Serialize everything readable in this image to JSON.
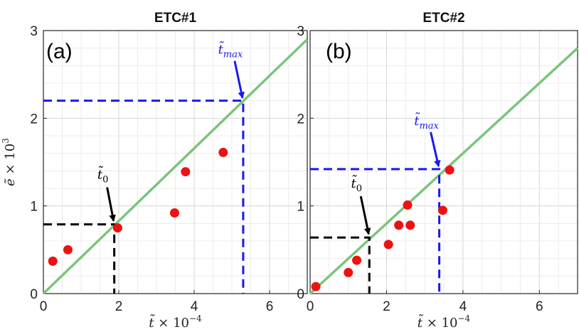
{
  "chart_data": [
    {
      "type": "scatter",
      "title": "ETC#1",
      "panel_label": "(a)",
      "xlabel": {
        "base": "t",
        "times": "×",
        "ten": "10",
        "exp": "−4"
      },
      "ylabel": {
        "base": "e",
        "times": "×",
        "ten": "10",
        "exp": "3"
      },
      "xlim": [
        0,
        7
      ],
      "ylim": [
        0,
        3
      ],
      "xticks": [
        0,
        2,
        4,
        6
      ],
      "xtick_labels": [
        "0",
        "2",
        "4",
        "6"
      ],
      "yticks": [
        0,
        1,
        2,
        3
      ],
      "ytick_labels": [
        "0",
        "1",
        "2",
        "3"
      ],
      "grid": true,
      "colors": {
        "points": "#ee1111",
        "line": "#7cc47c",
        "t0_guide": "#000000",
        "tmax_guide": "#1a1aee"
      },
      "line": {
        "x": [
          0,
          7
        ],
        "y": [
          0,
          2.9
        ]
      },
      "points": [
        {
          "x": 0.25,
          "y": 0.37
        },
        {
          "x": 0.65,
          "y": 0.5
        },
        {
          "x": 1.97,
          "y": 0.75
        },
        {
          "x": 3.48,
          "y": 0.92
        },
        {
          "x": 3.77,
          "y": 1.39
        },
        {
          "x": 4.77,
          "y": 1.61
        }
      ],
      "t0": {
        "x": 1.88,
        "y": 0.79,
        "label_base": "t",
        "label_sub": "0"
      },
      "tmax": {
        "x": 5.3,
        "y": 2.2,
        "label_base": "t",
        "label_sub": "max"
      }
    },
    {
      "type": "scatter",
      "title": "ETC#2",
      "panel_label": "(b)",
      "xlabel": {
        "base": "t",
        "times": "×",
        "ten": "10",
        "exp": "−4"
      },
      "ylabel": {
        "base": "",
        "times": "",
        "ten": "",
        "exp": ""
      },
      "xlim": [
        0,
        7
      ],
      "ylim": [
        0,
        3
      ],
      "xticks": [
        0,
        2,
        4,
        6
      ],
      "xtick_labels": [
        "0",
        "2",
        "4",
        "6"
      ],
      "yticks": [
        0,
        1,
        2,
        3
      ],
      "ytick_labels": [
        "0",
        "1",
        "2",
        "3"
      ],
      "grid": true,
      "colors": {
        "points": "#ee1111",
        "line": "#7cc47c",
        "t0_guide": "#000000",
        "tmax_guide": "#1a1aee"
      },
      "line": {
        "x": [
          0,
          7
        ],
        "y": [
          0,
          2.8
        ]
      },
      "points": [
        {
          "x": 0.15,
          "y": 0.08
        },
        {
          "x": 1.0,
          "y": 0.24
        },
        {
          "x": 1.22,
          "y": 0.38
        },
        {
          "x": 2.05,
          "y": 0.56
        },
        {
          "x": 2.32,
          "y": 0.78
        },
        {
          "x": 2.55,
          "y": 1.01
        },
        {
          "x": 2.62,
          "y": 0.78
        },
        {
          "x": 3.47,
          "y": 0.95
        },
        {
          "x": 3.65,
          "y": 1.41
        }
      ],
      "t0": {
        "x": 1.55,
        "y": 0.64,
        "label_base": "t",
        "label_sub": "0"
      },
      "tmax": {
        "x": 3.38,
        "y": 1.42,
        "label_base": "t",
        "label_sub": "max"
      }
    }
  ]
}
